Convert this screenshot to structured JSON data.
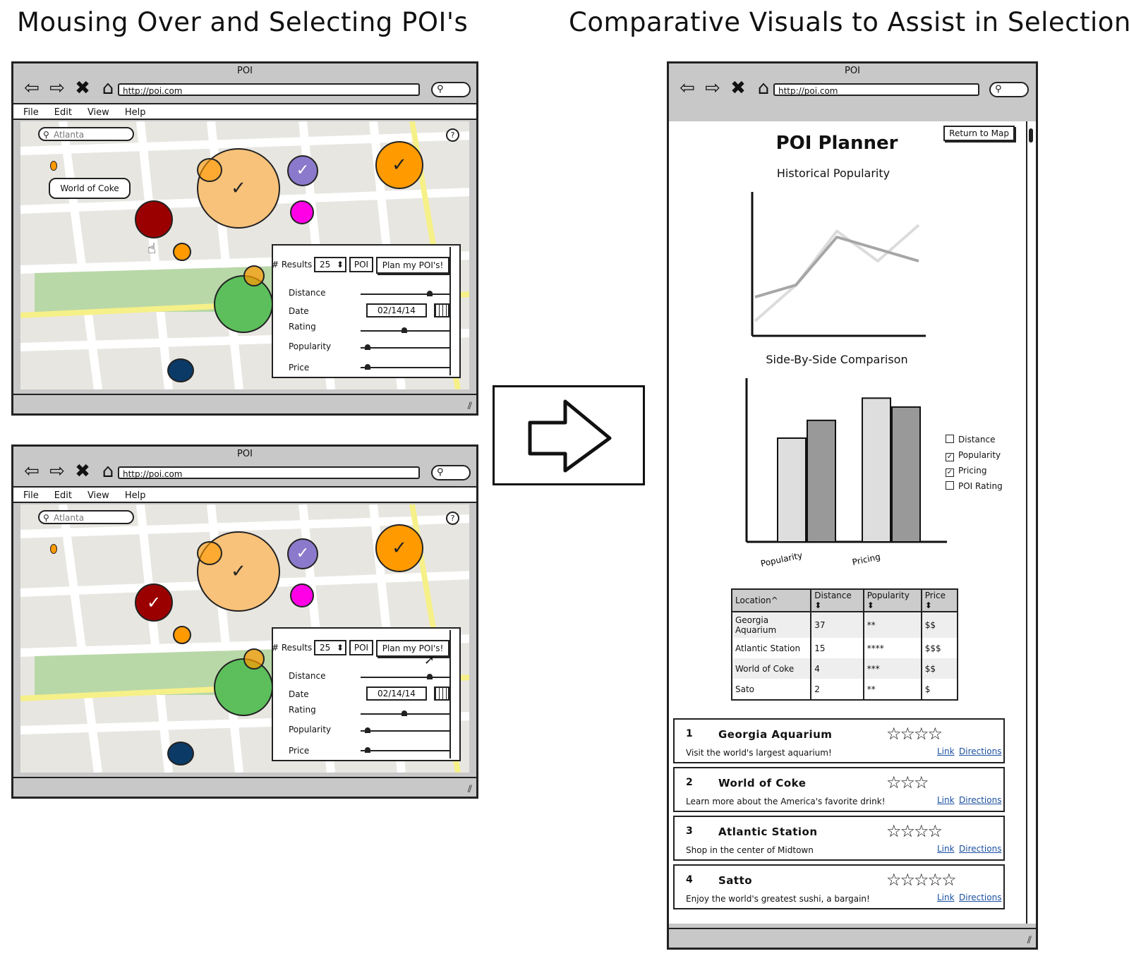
{
  "headings": {
    "left": "Mousing Over and Selecting POI's",
    "right": "Comparative Visuals to Assist in Selection"
  },
  "browser": {
    "title": "POI",
    "url": "http://poi.com",
    "menu": [
      "File",
      "Edit",
      "View",
      "Help"
    ]
  },
  "map": {
    "search_placeholder": "Atlanta",
    "help_glyph": "?",
    "tooltip": "World of Coke",
    "panel": {
      "results_label": "# Results",
      "results_value": "25",
      "type_value": "POI",
      "plan_button": "Plan my POI's!",
      "filters": [
        "Distance",
        "Date",
        "Rating",
        "Popularity",
        "Price"
      ],
      "date_value": "02/14/14"
    },
    "colors": {
      "orange": "#ff9a00",
      "light_orange": "#f8c27a",
      "purple": "#8b7acb",
      "magenta": "#ff00e6",
      "dark_red": "#9b0000",
      "green": "#5cbf5c",
      "navy": "#0b3a66",
      "road_yellow": "#f6f089",
      "park_green": "#b9d8a8"
    }
  },
  "planner": {
    "return_button": "Return to Map",
    "title": "POI Planner",
    "line_chart_title": "Historical Popularity",
    "bar_chart_title": "Side-By-Side Comparison",
    "checkboxes": [
      {
        "label": "Distance",
        "checked": false
      },
      {
        "label": "Popularity",
        "checked": true
      },
      {
        "label": "Pricing",
        "checked": true
      },
      {
        "label": "POI Rating",
        "checked": false
      }
    ],
    "table": {
      "headers": [
        "Location^",
        "Distance ⬍",
        "Popularity ⬍",
        "Price ⬍"
      ],
      "rows": [
        [
          "Georgia Aquarium",
          "37",
          "**",
          "$$"
        ],
        [
          "Atlantic Station",
          "15",
          "****",
          "$$$"
        ],
        [
          "World of Coke",
          "4",
          "***",
          "$$"
        ],
        [
          "Sato",
          "2",
          "**",
          "$"
        ]
      ]
    },
    "cards": [
      {
        "num": "1",
        "name": "Georgia Aquarium",
        "desc": "Visit the world's largest aquarium!",
        "stars": 4
      },
      {
        "num": "2",
        "name": "World of Coke",
        "desc": "Learn more about the America's favorite drink!",
        "stars": 3
      },
      {
        "num": "3",
        "name": "Atlantic Station",
        "desc": "Shop in the center of Midtown",
        "stars": 4
      },
      {
        "num": "4",
        "name": "Satto",
        "desc": "Enjoy the world's greatest sushi, a bargain!",
        "stars": 5
      }
    ],
    "link_label": "Link",
    "directions_label": "Directions"
  },
  "chart_data": [
    {
      "type": "line",
      "title": "Historical Popularity",
      "x": [
        0,
        1,
        2,
        3,
        4
      ],
      "series": [
        {
          "values": [
            10,
            40,
            85,
            60,
            90
          ]
        },
        {
          "values": [
            30,
            40,
            80,
            70,
            60
          ]
        }
      ],
      "xlabel": "",
      "ylabel": ""
    },
    {
      "type": "bar",
      "title": "Side-By-Side Comparison",
      "categories": [
        "Popularity",
        "Pricing"
      ],
      "series": [
        {
          "values": [
            70,
            97
          ]
        },
        {
          "values": [
            82,
            91
          ]
        }
      ]
    }
  ]
}
